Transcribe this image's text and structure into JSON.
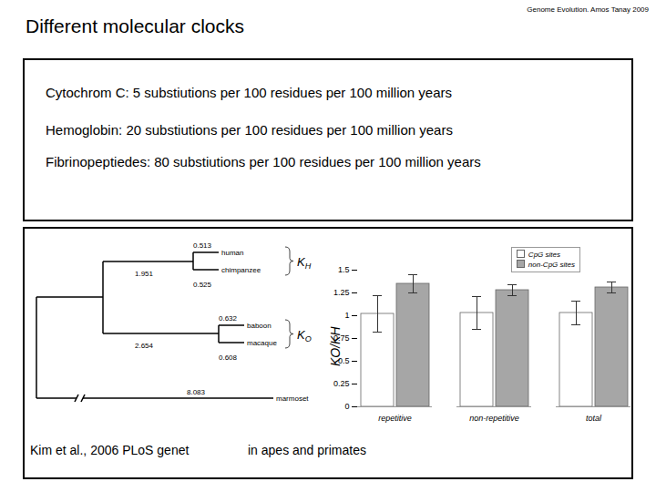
{
  "header": {
    "title": "Different molecular clocks",
    "credit": "Genome Evolution. Amos Tanay 2009"
  },
  "rates": [
    "Cytochrom C: 5 substiutions per 100 residues per 100 million years",
    "Hemoglobin: 20 substiutions per 100 residues per 100 million years",
    "Fibrinopeptiedes: 80 substiutions per 100 residues per 100 million years"
  ],
  "tree": {
    "clades": [
      {
        "branch": 1.951,
        "bracket": {
          "symbol": "K",
          "subscript": "H"
        },
        "tips": [
          {
            "name": "human",
            "length": 0.513
          },
          {
            "name": "chimpanzee",
            "length": 0.525
          }
        ]
      },
      {
        "branch": 2.654,
        "bracket": {
          "symbol": "K",
          "subscript": "O"
        },
        "tips": [
          {
            "name": "baboon",
            "length": 0.632
          },
          {
            "name": "macaque",
            "length": 0.608
          }
        ]
      }
    ],
    "outgroup": {
      "name": "marmoset",
      "length": 8.083
    }
  },
  "chart_data": {
    "type": "bar",
    "ylabel": "KO/KH",
    "categories": [
      "repetitive",
      "non-repetitive",
      "total"
    ],
    "series": [
      {
        "name": "CpG sites",
        "color": "#ffffff",
        "values": [
          1.02,
          1.03,
          1.03
        ],
        "errors": [
          0.2,
          0.18,
          0.13
        ]
      },
      {
        "name": "non-CpG sites",
        "color": "#a6a6a6",
        "values": [
          1.35,
          1.28,
          1.31
        ],
        "errors": [
          0.1,
          0.06,
          0.06
        ]
      }
    ],
    "ylim": [
      0,
      1.5
    ],
    "yticks": [
      0,
      0.25,
      0.5,
      0.75,
      1,
      1.25,
      1.5
    ],
    "legend": "upper right"
  },
  "captions": {
    "source": "Kim et al., 2006 PLoS genet",
    "note": "in apes and primates"
  }
}
